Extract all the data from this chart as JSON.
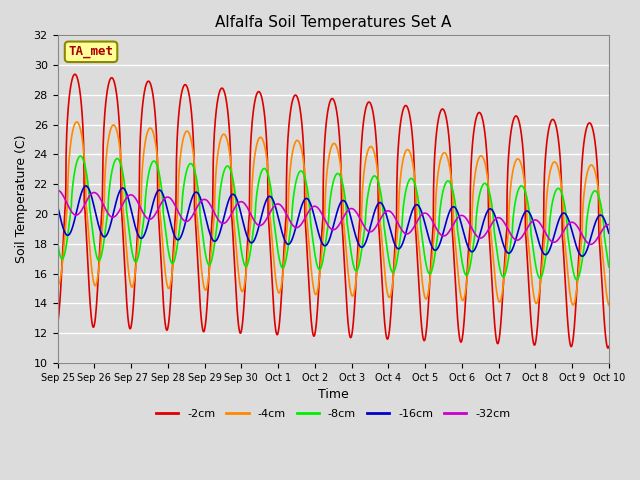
{
  "title": "Alfalfa Soil Temperatures Set A",
  "xlabel": "Time",
  "ylabel": "Soil Temperature (C)",
  "ylim": [
    10,
    32
  ],
  "yticks": [
    10,
    12,
    14,
    16,
    18,
    20,
    22,
    24,
    26,
    28,
    30,
    32
  ],
  "background_color": "#dcdcdc",
  "plot_bg_color": "#dcdcdc",
  "grid_color": "#ffffff",
  "series": {
    "-2cm": {
      "color": "#dd0000",
      "linewidth": 1.2
    },
    "-4cm": {
      "color": "#ff8800",
      "linewidth": 1.2
    },
    "-8cm": {
      "color": "#00ee00",
      "linewidth": 1.2
    },
    "-16cm": {
      "color": "#0000cc",
      "linewidth": 1.2
    },
    "-32cm": {
      "color": "#cc00cc",
      "linewidth": 1.2
    }
  },
  "legend_labels": [
    "-2cm",
    "-4cm",
    "-8cm",
    "-16cm",
    "-32cm"
  ],
  "annotation": {
    "text": "TA_met",
    "fontsize": 9,
    "color": "#aa0000",
    "bg": "#ffff99",
    "border_color": "#888800"
  },
  "n_days": 15,
  "points_per_day": 120
}
